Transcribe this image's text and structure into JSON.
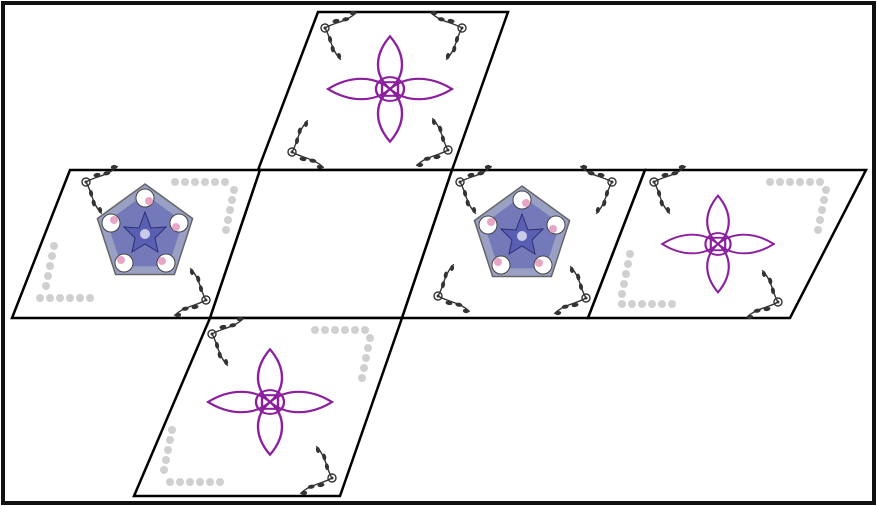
{
  "figure": {
    "kind": "net of a parallelepiped (sheared cube net)",
    "faces": [
      {
        "id": "face-top",
        "decoration": "four-petal-knot",
        "corner": "floral-sprig"
      },
      {
        "id": "face-left",
        "decoration": "pentagon-rosette",
        "corner": "floral-and-dotted"
      },
      {
        "id": "face-center",
        "decoration": "blank",
        "corner": "none"
      },
      {
        "id": "face-mid-right",
        "decoration": "pentagon-rosette",
        "corner": "floral-sprig"
      },
      {
        "id": "face-far-right",
        "decoration": "four-petal-knot",
        "corner": "floral-and-dotted"
      },
      {
        "id": "face-bottom",
        "decoration": "four-petal-knot",
        "corner": "floral-and-dotted"
      }
    ]
  },
  "colors": {
    "frame": "#111111",
    "edge": "#000000",
    "knot": "#8b1f9e",
    "pentagon-fill": "#9aa0c4",
    "pentagon-center": "#5a5fb4",
    "pink-accent": "#e8a6c6",
    "floral": "#333333",
    "dots": "#c8c8c8"
  }
}
